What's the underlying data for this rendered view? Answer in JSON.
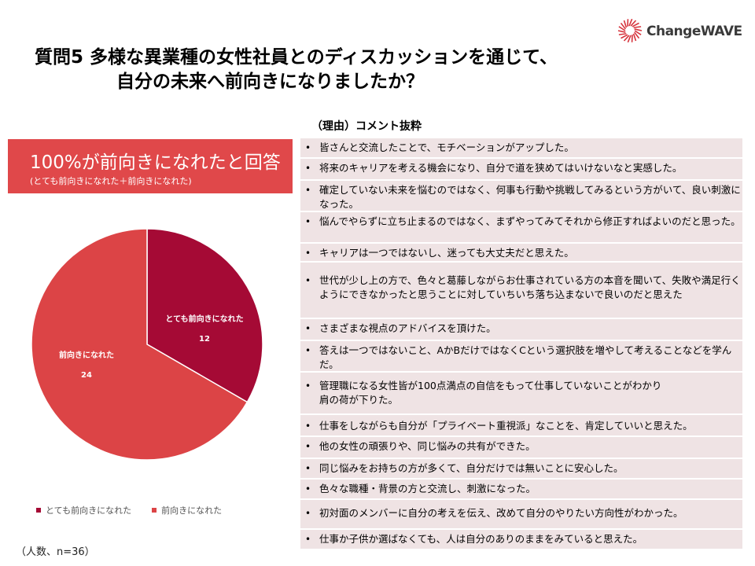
{
  "logo": {
    "text": "ChangeWAVE",
    "mark_color": "#d6343d"
  },
  "title": {
    "line1": "質問5 多様な異業種の女性社員とのディスカッションを通じて、",
    "line2": "自分の未来へ前向きになりましたか？"
  },
  "banner": {
    "main": "100%が前向きになれたと回答",
    "sub": "(とても前向きになれた＋前向きになれた)",
    "color": "#e0484a"
  },
  "chart_data": {
    "type": "pie",
    "slices": [
      {
        "label": "とても前向きになれた",
        "value": 12,
        "color": "#a50a35"
      },
      {
        "label": "前向きになれた",
        "value": 24,
        "color": "#dc4446"
      }
    ],
    "legend": [
      "とても前向きになれた",
      "前向きになれた"
    ],
    "legend_placement": "bottom"
  },
  "note": "（人数、n=36）",
  "comments_header": "（理由）コメント抜粋",
  "comments": [
    "皆さんと交流したことで、モチベーションがアップした。",
    "将来のキャリアを考える機会になり、自分で道を狭めてはいけないなと実感した。",
    "確定していない未来を悩むのではなく、何事も行動や挑戦してみるという方がいて、良い刺激になった。",
    "悩んでやらずに立ち止まるのではなく、まずやってみてそれから修正すればよいのだと思った。",
    "キャリアは一つではないし、迷っても大丈夫だと思えた。",
    "世代が少し上の方で、色々と葛藤しながらお仕事されている方の本音を聞いて、失敗や満足行くようにできなかったと思うことに対していちいち落ち込まないで良いのだと思えた",
    "さまざまな視点のアドバイスを頂けた。",
    "答えは一つではないこと、AかBだけではなくCという選択肢を増やして考えることなどを学んだ。",
    "管理職になる女性皆が100点満点の自信をもって仕事していないことがわかり\n肩の荷が下りた。",
    "仕事をしながらも自分が「プライベート重視派」なことを、肯定していいと思えた。",
    "他の女性の頑張りや、同じ悩みの共有ができた。",
    "同じ悩みをお持ちの方が多くて、自分だけでは無いことに安心した。",
    "色々な職種・背景の方と交流し、刺激になった。",
    "初対面のメンバーに自分の考えを伝え、改めて自分のやりたい方向性がわかった。",
    "仕事か子供か選ばなくても、人は自分のありのままをみていると思えた。"
  ]
}
